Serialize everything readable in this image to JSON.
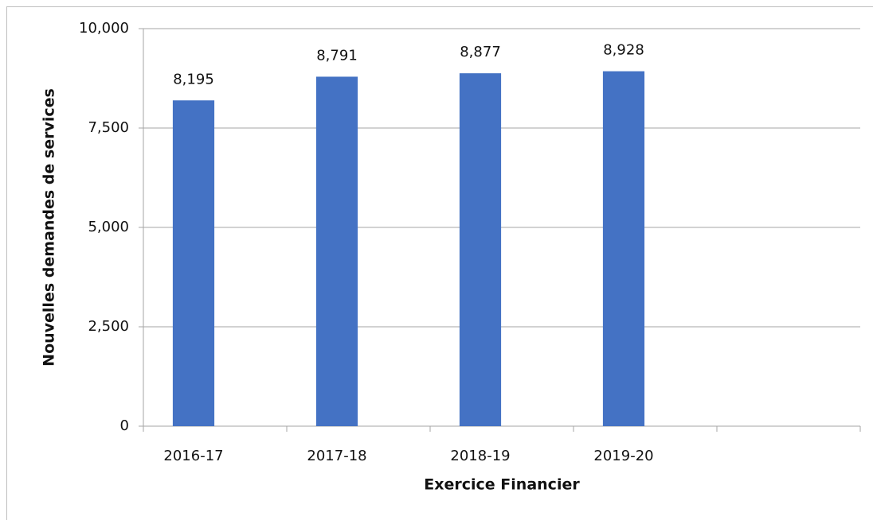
{
  "chart_data": {
    "type": "bar",
    "x_label": "Exercice Financier",
    "y_label": "Nouvelles demandes de services",
    "categories": [
      "2016-17",
      "2017-18",
      "2018-19",
      "2019-20",
      null
    ],
    "values": [
      8195,
      8791,
      8877,
      8928,
      null
    ],
    "value_labels": [
      "8,195",
      "8,791",
      "8,877",
      "8,928",
      null
    ],
    "color": "#4472c4",
    "ylim": [
      0,
      10000
    ],
    "yticks": [
      0,
      {
        "value": 2500,
        "label": "2,500"
      },
      {
        "value": 5000,
        "label": "5,000"
      },
      {
        "value": 7500,
        "label": "7,500"
      },
      {
        "value": 10000,
        "label": "10,000"
      }
    ],
    "grid": true
  }
}
